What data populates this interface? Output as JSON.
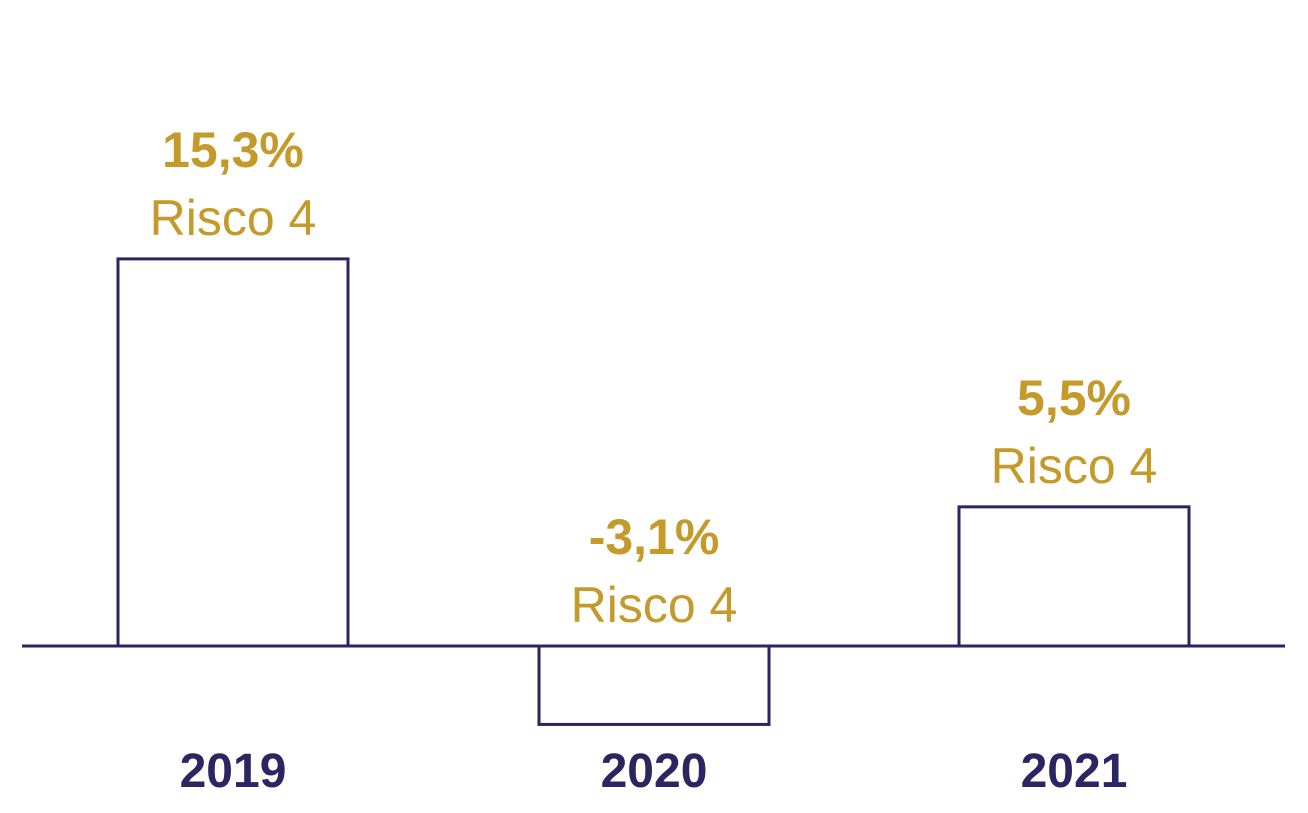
{
  "chart_data": {
    "type": "bar",
    "title": "",
    "xlabel": "",
    "ylabel": "",
    "categories": [
      "2019",
      "2020",
      "2021"
    ],
    "values": [
      15.3,
      -3.1,
      5.5
    ],
    "value_labels": [
      "15,3%",
      "-3,1%",
      "5,5%"
    ],
    "risk_labels": [
      "Risco 4",
      "Risco 4",
      "Risco 4"
    ],
    "ylim": [
      -3.1,
      15.3
    ],
    "grid": false,
    "legend": "none",
    "colors": {
      "bar_stroke": "#2b2561",
      "bar_fill": "#ffffff",
      "axis": "#2b2561",
      "label": "#c49a2a",
      "category": "#2b2561"
    }
  }
}
